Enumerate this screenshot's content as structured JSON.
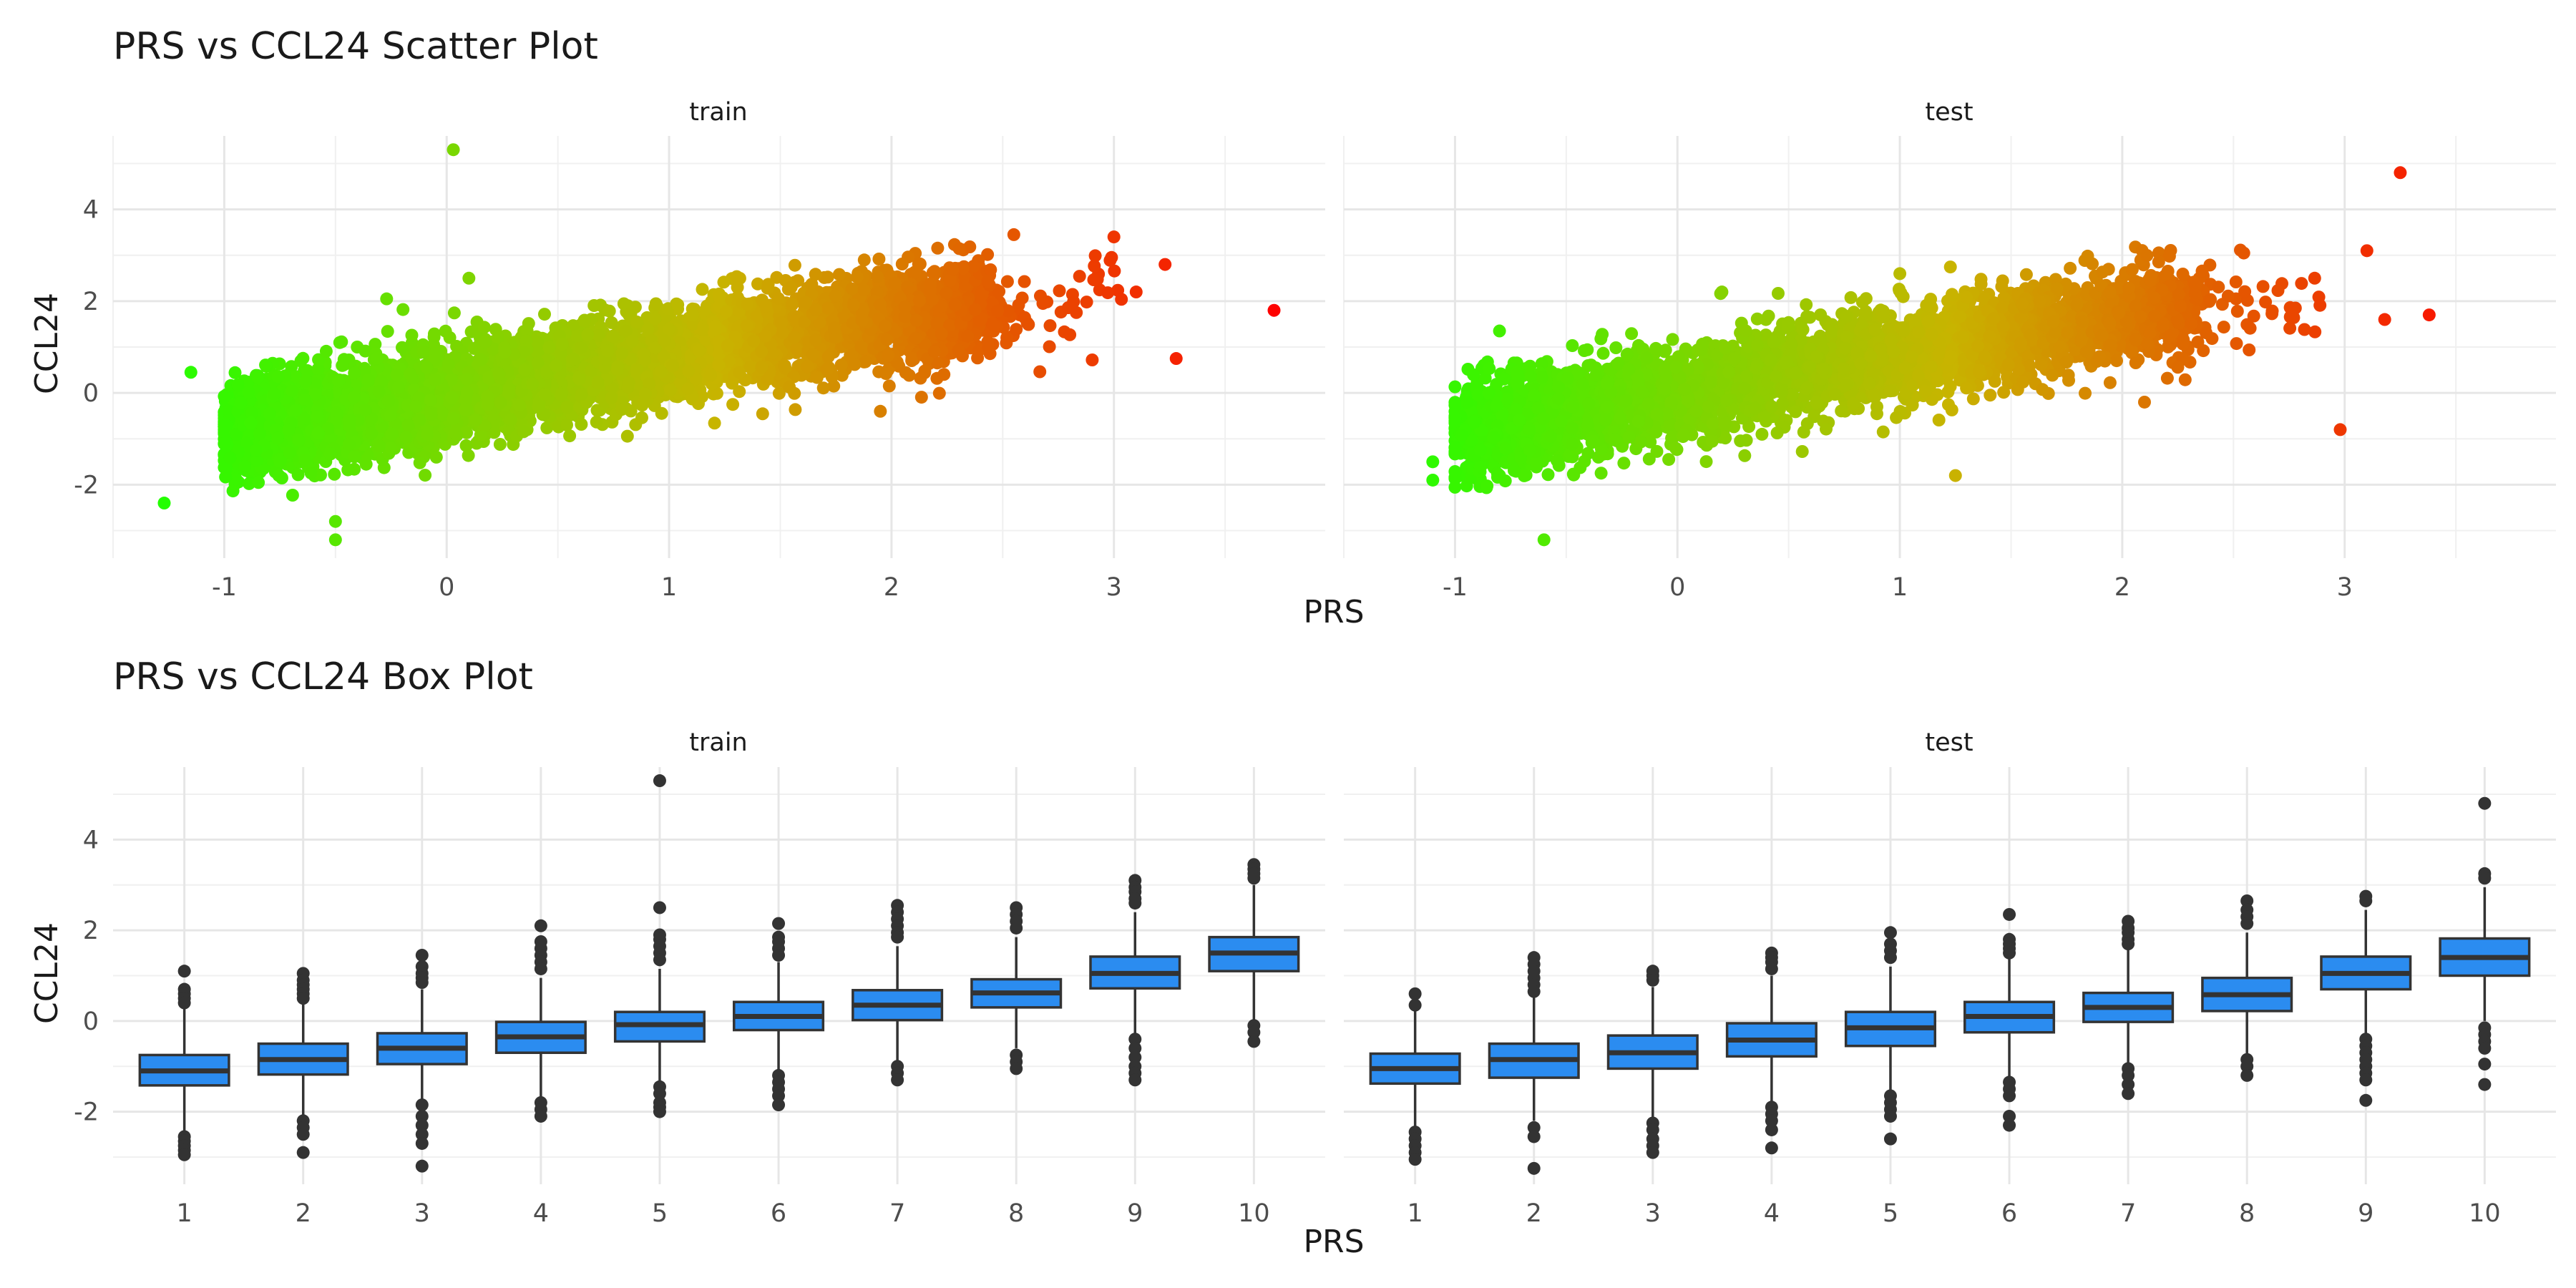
{
  "chart_data": [
    {
      "type": "scatter",
      "title": "PRS vs CCL24 Scatter Plot",
      "xlabel": "PRS",
      "ylabel": "CCL24",
      "facets": [
        "train",
        "test"
      ],
      "xticks": [
        -1,
        0,
        1,
        2,
        3
      ],
      "yticks": [
        -2,
        0,
        2,
        4
      ],
      "xlim": [
        -1.5,
        3.95
      ],
      "ylim": [
        -3.6,
        5.6
      ],
      "grid": true,
      "color_scale": {
        "low": "#22ff00",
        "mid": "#c8b400",
        "high": "#ff0000",
        "mapped_to": "PRS"
      },
      "trend": {
        "intercept": 0.0,
        "slope": 0.85,
        "flatten_after": 2.0
      },
      "series": [
        {
          "facet": "train",
          "x_range": [
            -0.95,
            3.05
          ],
          "n_points": 5000,
          "outliers": [
            {
              "x": 0.03,
              "y": 5.3
            },
            {
              "x": 3.72,
              "y": 1.8
            },
            {
              "x": 3.28,
              "y": 0.75
            },
            {
              "x": -1.27,
              "y": -2.4
            },
            {
              "x": 3.23,
              "y": 2.8
            },
            {
              "x": 3.0,
              "y": 3.4
            },
            {
              "x": 2.55,
              "y": 3.45
            },
            {
              "x": 3.1,
              "y": 2.2
            },
            {
              "x": -0.5,
              "y": -3.2
            },
            {
              "x": -1.15,
              "y": 0.45
            },
            {
              "x": 0.1,
              "y": 2.5
            },
            {
              "x": 1.95,
              "y": -0.4
            },
            {
              "x": -0.27,
              "y": 2.05
            },
            {
              "x": -0.5,
              "y": -2.8
            }
          ]
        },
        {
          "facet": "test",
          "x_range": [
            -0.95,
            2.9
          ],
          "n_points": 3800,
          "outliers": [
            {
              "x": 3.25,
              "y": 4.8
            },
            {
              "x": 3.1,
              "y": 3.1
            },
            {
              "x": 3.38,
              "y": 1.7
            },
            {
              "x": 3.18,
              "y": 1.6
            },
            {
              "x": 2.98,
              "y": -0.8
            },
            {
              "x": -1.1,
              "y": -1.9
            },
            {
              "x": -1.1,
              "y": -1.5
            },
            {
              "x": 0.2,
              "y": 2.2
            },
            {
              "x": 1.0,
              "y": 2.6
            },
            {
              "x": -0.6,
              "y": -3.2
            },
            {
              "x": 1.25,
              "y": -1.8
            },
            {
              "x": 2.1,
              "y": -0.2
            },
            {
              "x": -0.8,
              "y": 1.35
            }
          ]
        }
      ]
    },
    {
      "type": "box",
      "title": "PRS vs CCL24 Box Plot",
      "xlabel": "PRS",
      "ylabel": "CCL24",
      "facets": [
        "train",
        "test"
      ],
      "categories": [
        "1",
        "2",
        "3",
        "4",
        "5",
        "6",
        "7",
        "8",
        "9",
        "10"
      ],
      "yticks": [
        -2,
        0,
        2,
        4
      ],
      "ylim": [
        -3.6,
        5.6
      ],
      "grid": true,
      "box_fill": "#2b8cf0",
      "box_stroke": "#333333",
      "outlier_color": "#333333",
      "series": [
        {
          "facet": "train",
          "boxes": [
            {
              "q1": -1.42,
              "median": -1.1,
              "q3": -0.75,
              "whisker_low": -2.45,
              "whisker_high": 0.3,
              "outliers": [
                1.1,
                0.7,
                0.6,
                0.5,
                0.4,
                -2.55,
                -2.65,
                -2.75,
                -2.85,
                -2.95
              ]
            },
            {
              "q1": -1.18,
              "median": -0.85,
              "q3": -0.5,
              "whisker_low": -2.1,
              "whisker_high": 0.4,
              "outliers": [
                1.05,
                0.9,
                0.8,
                0.7,
                0.6,
                0.5,
                -2.2,
                -2.35,
                -2.5,
                -2.9
              ]
            },
            {
              "q1": -0.95,
              "median": -0.6,
              "q3": -0.27,
              "whisker_low": -1.75,
              "whisker_high": 0.7,
              "outliers": [
                1.45,
                1.2,
                1.05,
                0.95,
                0.85,
                -1.85,
                -2.1,
                -2.3,
                -2.5,
                -2.7,
                -3.2
              ]
            },
            {
              "q1": -0.7,
              "median": -0.35,
              "q3": -0.02,
              "whisker_low": -1.7,
              "whisker_high": 0.95,
              "outliers": [
                2.1,
                1.75,
                1.6,
                1.45,
                1.3,
                1.15,
                -1.8,
                -1.95,
                -2.1
              ]
            },
            {
              "q1": -0.45,
              "median": -0.08,
              "q3": 0.2,
              "whisker_low": -1.35,
              "whisker_high": 1.15,
              "outliers": [
                5.3,
                2.5,
                1.9,
                1.8,
                1.65,
                1.5,
                1.35,
                -1.45,
                -1.6,
                -1.8,
                -1.9,
                -2.0
              ]
            },
            {
              "q1": -0.2,
              "median": 0.1,
              "q3": 0.42,
              "whisker_low": -1.1,
              "whisker_high": 1.3,
              "outliers": [
                2.15,
                1.85,
                1.75,
                1.6,
                1.45,
                -1.2,
                -1.35,
                -1.5,
                -1.65,
                -1.85
              ]
            },
            {
              "q1": 0.02,
              "median": 0.35,
              "q3": 0.68,
              "whisker_low": -0.9,
              "whisker_high": 1.65,
              "outliers": [
                2.55,
                2.4,
                2.25,
                2.1,
                1.95,
                1.85,
                -1.0,
                -1.15,
                -1.3
              ]
            },
            {
              "q1": 0.3,
              "median": 0.62,
              "q3": 0.92,
              "whisker_low": -0.6,
              "whisker_high": 1.85,
              "outliers": [
                2.5,
                2.35,
                2.2,
                2.05,
                -0.75,
                -0.9,
                -1.05
              ]
            },
            {
              "q1": 0.72,
              "median": 1.05,
              "q3": 1.42,
              "whisker_low": -0.3,
              "whisker_high": 2.4,
              "outliers": [
                3.1,
                2.95,
                2.85,
                2.7,
                2.6,
                -0.4,
                -0.6,
                -0.8,
                -1.0,
                -1.15,
                -1.3
              ]
            },
            {
              "q1": 1.1,
              "median": 1.5,
              "q3": 1.85,
              "whisker_low": 0.0,
              "whisker_high": 3.0,
              "outliers": [
                3.45,
                3.35,
                3.25,
                3.15,
                -0.1,
                -0.25,
                -0.45
              ]
            }
          ]
        },
        {
          "facet": "test",
          "boxes": [
            {
              "q1": -1.38,
              "median": -1.05,
              "q3": -0.72,
              "whisker_low": -2.35,
              "whisker_high": 0.25,
              "outliers": [
                0.6,
                0.35,
                -2.45,
                -2.6,
                -2.75,
                -2.9,
                -3.05
              ]
            },
            {
              "q1": -1.25,
              "median": -0.85,
              "q3": -0.5,
              "whisker_low": -2.2,
              "whisker_high": 0.55,
              "outliers": [
                1.4,
                1.25,
                1.1,
                0.95,
                0.8,
                0.65,
                -2.35,
                -2.55,
                -3.25
              ]
            },
            {
              "q1": -1.05,
              "median": -0.7,
              "q3": -0.32,
              "whisker_low": -2.15,
              "whisker_high": 0.75,
              "outliers": [
                1.1,
                1.0,
                0.9,
                -2.25,
                -2.4,
                -2.6,
                -2.75,
                -2.9
              ]
            },
            {
              "q1": -0.78,
              "median": -0.42,
              "q3": -0.05,
              "whisker_low": -1.8,
              "whisker_high": 1.0,
              "outliers": [
                1.5,
                1.4,
                1.3,
                1.15,
                -1.9,
                -2.05,
                -2.2,
                -2.4,
                -2.8
              ]
            },
            {
              "q1": -0.55,
              "median": -0.15,
              "q3": 0.2,
              "whisker_low": -1.55,
              "whisker_high": 1.2,
              "outliers": [
                1.95,
                1.7,
                1.55,
                1.4,
                -1.65,
                -1.8,
                -1.95,
                -2.1,
                -2.6
              ]
            },
            {
              "q1": -0.25,
              "median": 0.1,
              "q3": 0.42,
              "whisker_low": -1.25,
              "whisker_high": 1.4,
              "outliers": [
                2.35,
                1.8,
                1.7,
                1.6,
                1.5,
                -1.35,
                -1.5,
                -1.65,
                -2.1,
                -2.3
              ]
            },
            {
              "q1": -0.02,
              "median": 0.3,
              "q3": 0.62,
              "whisker_low": -0.95,
              "whisker_high": 1.6,
              "outliers": [
                2.2,
                2.05,
                1.95,
                1.8,
                1.7,
                -1.05,
                -1.2,
                -1.4,
                -1.6
              ]
            },
            {
              "q1": 0.22,
              "median": 0.58,
              "q3": 0.95,
              "whisker_low": -0.75,
              "whisker_high": 1.95,
              "outliers": [
                2.65,
                2.45,
                2.3,
                2.15,
                -0.85,
                -1.0,
                -1.2
              ]
            },
            {
              "q1": 0.7,
              "median": 1.05,
              "q3": 1.42,
              "whisker_low": -0.3,
              "whisker_high": 2.45,
              "outliers": [
                2.75,
                2.65,
                -0.4,
                -0.55,
                -0.7,
                -0.85,
                -1.0,
                -1.15,
                -1.3,
                -1.75
              ]
            },
            {
              "q1": 1.0,
              "median": 1.4,
              "q3": 1.82,
              "whisker_low": 0.0,
              "whisker_high": 2.95,
              "outliers": [
                4.8,
                3.25,
                3.15,
                -0.15,
                -0.3,
                -0.45,
                -0.6,
                -0.95,
                -1.4
              ]
            }
          ]
        }
      ]
    }
  ]
}
